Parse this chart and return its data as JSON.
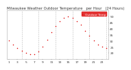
{
  "title": "Milwaukee Weather Outdoor Temperature   per Hour   (24 Hours)",
  "background_color": "#ffffff",
  "plot_bg_color": "#ffffff",
  "grid_color": "#aaaaaa",
  "dot_color": "#dd0000",
  "legend_bg_color": "#dd0000",
  "legend_text_color": "#ffffff",
  "hours": [
    1,
    2,
    3,
    4,
    5,
    6,
    7,
    8,
    9,
    10,
    11,
    12,
    13,
    14,
    15,
    16,
    17,
    18,
    19,
    20,
    21,
    22,
    23,
    24
  ],
  "temps": [
    30,
    27,
    24,
    22,
    20,
    19,
    19,
    21,
    25,
    31,
    37,
    42,
    46,
    49,
    50,
    49,
    46,
    43,
    38,
    34,
    30,
    27,
    25,
    24
  ],
  "ylim": [
    15,
    55
  ],
  "yticks": [
    20,
    25,
    30,
    35,
    40,
    45,
    50
  ],
  "ytick_labels": [
    "20",
    "25",
    "30",
    "35",
    "40",
    "45",
    "50"
  ],
  "xtick_step": [
    1,
    3,
    5,
    7,
    9,
    11,
    13,
    15,
    17,
    19,
    21,
    23
  ],
  "title_fontsize": 3.8,
  "tick_fontsize": 3.2,
  "title_color": "#333333",
  "tick_color": "#333333",
  "legend_label": "Outdoor Temp",
  "legend_fontsize": 3.2,
  "spine_color": "#aaaaaa",
  "vgrid_positions": [
    4,
    8,
    12,
    16,
    20,
    24
  ]
}
